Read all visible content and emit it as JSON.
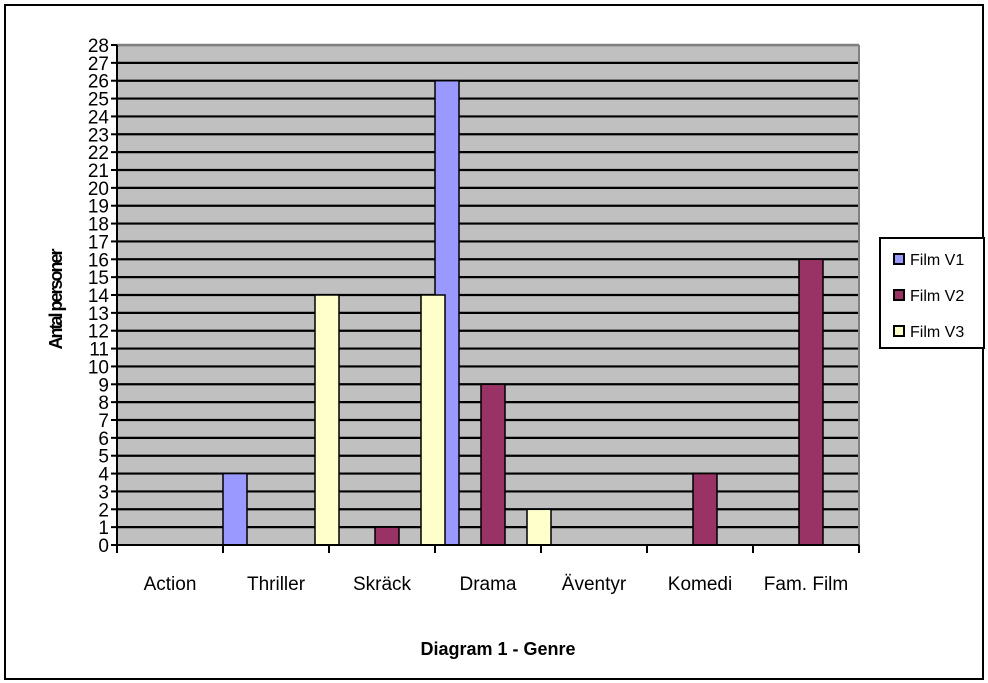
{
  "chart_data": {
    "type": "bar",
    "title": "Diagram 1 - Genre",
    "ylabel": "Antal personer",
    "xlabel": "",
    "categories": [
      "Action",
      "Thriller",
      "Skräck",
      "Drama",
      "Äventyr",
      "Komedi",
      "Fam. Film"
    ],
    "series": [
      {
        "name": "Film V1",
        "values": [
          0,
          4,
          0,
          26,
          0,
          0,
          0
        ]
      },
      {
        "name": "Film V2",
        "values": [
          0,
          0,
          1,
          9,
          0,
          4,
          16
        ]
      },
      {
        "name": "Film V3",
        "values": [
          0,
          14,
          14,
          2,
          0,
          0,
          0
        ]
      }
    ],
    "ylim": [
      0,
      28
    ],
    "ytick_step": 1,
    "grid": true,
    "legend": "right",
    "colors": {
      "plot_bg": "#c0c0c0",
      "Film V1": "#9999ff",
      "Film V2": "#993366",
      "Film V3": "#ffffcc"
    }
  }
}
